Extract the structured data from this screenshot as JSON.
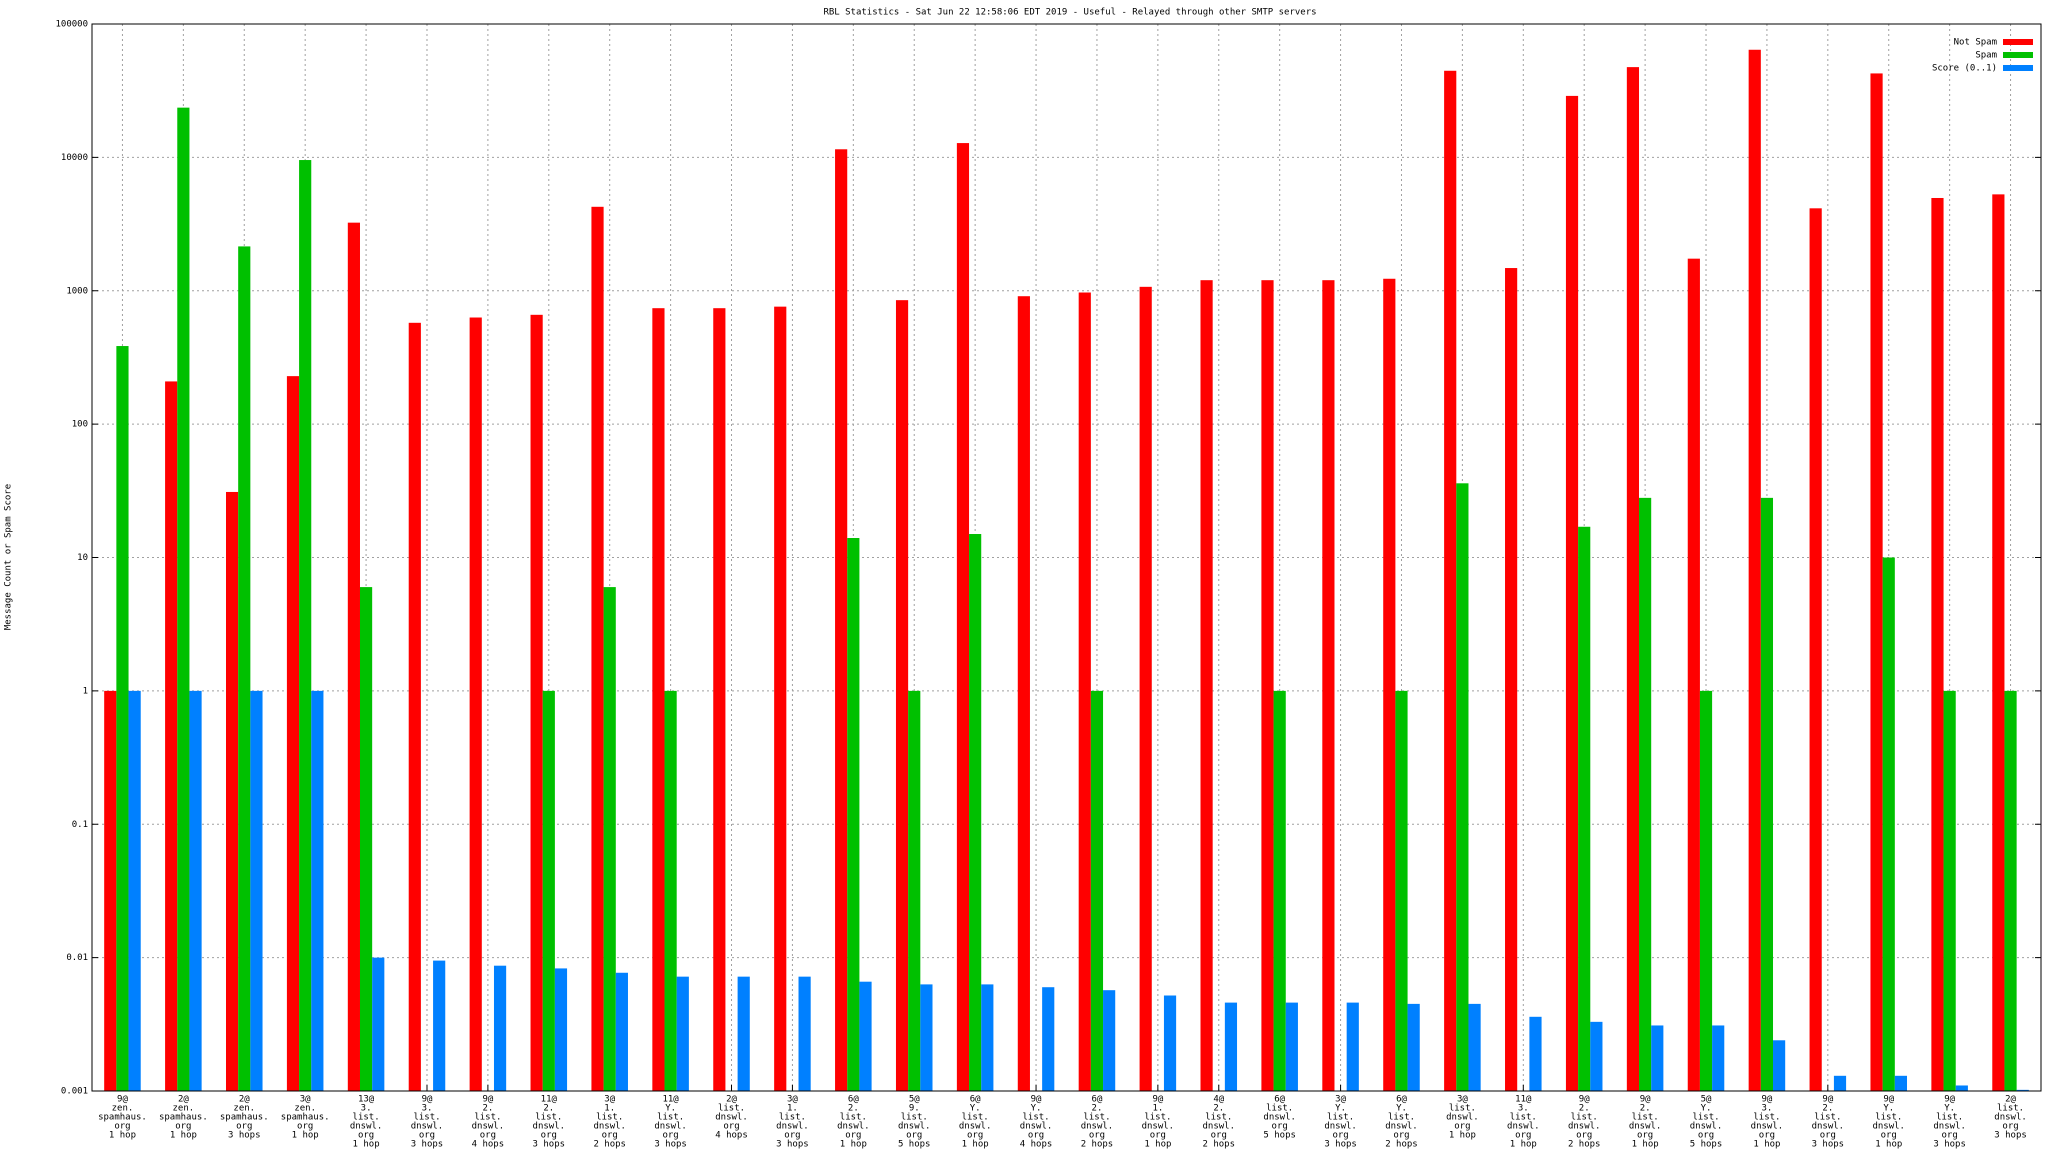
{
  "chart_data": {
    "type": "bar",
    "title": "RBL Statistics - Sat Jun 22 12:58:06 EDT 2019 - Useful - Relayed through other SMTP servers",
    "y_label": "Message Count or Spam Score",
    "log_scale": true,
    "grid": true,
    "legend": "top-right",
    "ylim": [
      0.001,
      100000
    ],
    "yticks": [
      0.001,
      0.01,
      0.1,
      1,
      10,
      100,
      1000,
      10000,
      100000
    ],
    "categories": [
      [
        "9@",
        "zen.",
        "spamhaus.",
        "org",
        "1 hop"
      ],
      [
        "2@",
        "zen.",
        "spamhaus.",
        "org",
        "1 hop"
      ],
      [
        "2@",
        "zen.",
        "spamhaus.",
        "org",
        "3 hops"
      ],
      [
        "3@",
        "zen.",
        "spamhaus.",
        "org",
        "1 hop"
      ],
      [
        "13@",
        "3.",
        "list.",
        "dnswl.",
        "org",
        "1 hop"
      ],
      [
        "9@",
        "3.",
        "list.",
        "dnswl.",
        "org",
        "3 hops"
      ],
      [
        "9@",
        "2.",
        "list.",
        "dnswl.",
        "org",
        "4 hops"
      ],
      [
        "11@",
        "2.",
        "list.",
        "dnswl.",
        "org",
        "3 hops"
      ],
      [
        "3@",
        "1.",
        "list.",
        "dnswl.",
        "org",
        "2 hops"
      ],
      [
        "11@",
        "Y.",
        "list.",
        "dnswl.",
        "org",
        "3 hops"
      ],
      [
        "2@",
        "list.",
        "dnswl.",
        "org",
        "4 hops"
      ],
      [
        "3@",
        "1.",
        "list.",
        "dnswl.",
        "org",
        "3 hops"
      ],
      [
        "6@",
        "2.",
        "list.",
        "dnswl.",
        "org",
        "1 hop"
      ],
      [
        "5@",
        "9.",
        "list.",
        "dnswl.",
        "org",
        "5 hops"
      ],
      [
        "6@",
        "Y.",
        "list.",
        "dnswl.",
        "org",
        "1 hop"
      ],
      [
        "9@",
        "Y.",
        "list.",
        "dnswl.",
        "org",
        "4 hops"
      ],
      [
        "6@",
        "2.",
        "list.",
        "dnswl.",
        "org",
        "2 hops"
      ],
      [
        "9@",
        "1.",
        "list.",
        "dnswl.",
        "org",
        "1 hop"
      ],
      [
        "4@",
        "2.",
        "list.",
        "dnswl.",
        "org",
        "2 hops"
      ],
      [
        "6@",
        "list.",
        "dnswl.",
        "org",
        "5 hops"
      ],
      [
        "3@",
        "Y.",
        "list.",
        "dnswl.",
        "org",
        "3 hops"
      ],
      [
        "6@",
        "Y.",
        "list.",
        "dnswl.",
        "org",
        "2 hops"
      ],
      [
        "3@",
        "list.",
        "dnswl.",
        "org",
        "1 hop"
      ],
      [
        "11@",
        "3.",
        "list.",
        "dnswl.",
        "org",
        "1 hop"
      ],
      [
        "9@",
        "2.",
        "list.",
        "dnswl.",
        "org",
        "2 hops"
      ],
      [
        "9@",
        "2.",
        "list.",
        "dnswl.",
        "org",
        "1 hop"
      ],
      [
        "5@",
        "Y.",
        "list.",
        "dnswl.",
        "org",
        "5 hops"
      ],
      [
        "9@",
        "3.",
        "list.",
        "dnswl.",
        "org",
        "1 hop"
      ],
      [
        "9@",
        "2.",
        "list.",
        "dnswl.",
        "org",
        "3 hops"
      ],
      [
        "9@",
        "Y.",
        "list.",
        "dnswl.",
        "org",
        "1 hop"
      ],
      [
        "9@",
        "Y.",
        "list.",
        "dnswl.",
        "org",
        "3 hops"
      ],
      [
        "2@",
        "list.",
        "dnswl.",
        "org",
        "3 hops"
      ]
    ],
    "series": [
      {
        "name": "Not Spam",
        "color": "#ff0000",
        "values": [
          1,
          209,
          31,
          229,
          3240,
          575,
          630,
          660,
          4260,
          740,
          740,
          760,
          11500,
          850,
          12800,
          910,
          970,
          1070,
          1200,
          1200,
          1200,
          1230,
          44600,
          1480,
          28900,
          47500,
          1740,
          64100,
          4150,
          42600,
          4960,
          5280
        ]
      },
      {
        "name": "Spam",
        "color": "#00c000",
        "values": [
          385,
          23600,
          2150,
          9550,
          6,
          null,
          null,
          1,
          6,
          1,
          null,
          null,
          14,
          1,
          15,
          null,
          1,
          null,
          null,
          1,
          null,
          1,
          36,
          null,
          17,
          28,
          1,
          28,
          null,
          10,
          1,
          1
        ]
      },
      {
        "name": "Score (0..1)",
        "color": "#0080ff",
        "values": [
          1,
          1,
          1,
          1,
          0.01,
          0.0095,
          0.0087,
          0.0083,
          0.0077,
          0.0072,
          0.0072,
          0.0072,
          0.0066,
          0.0063,
          0.0063,
          0.006,
          0.0057,
          0.0052,
          0.0046,
          0.0046,
          0.0046,
          0.0045,
          0.0045,
          0.0036,
          0.0033,
          0.0031,
          0.0031,
          0.0024,
          0.0013,
          0.0013,
          0.0011,
          0.00102
        ]
      }
    ]
  }
}
